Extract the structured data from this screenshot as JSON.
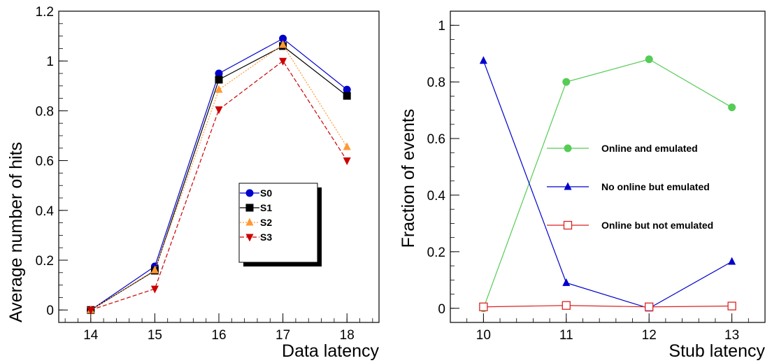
{
  "chart_data": [
    {
      "type": "line",
      "title": "",
      "xlabel": "Data latency",
      "ylabel": "Average number of hits",
      "x": [
        14,
        15,
        16,
        17,
        18
      ],
      "xlim": [
        13.5,
        18.5
      ],
      "ylim": [
        -0.05,
        1.2
      ],
      "xticks": [
        "14",
        "15",
        "16",
        "17",
        "18"
      ],
      "yticks": [
        "0",
        "0.2",
        "0.4",
        "0.6",
        "0.8",
        "1",
        "1.2"
      ],
      "grid": false,
      "legend_position": "bottom-right",
      "series": [
        {
          "name": "S0",
          "color": "#0000cc",
          "marker": "circle",
          "line": "solid",
          "values": [
            0.0,
            0.175,
            0.95,
            1.09,
            0.885
          ]
        },
        {
          "name": "S1",
          "color": "#000000",
          "marker": "square",
          "line": "solid",
          "values": [
            0.0,
            0.158,
            0.925,
            1.06,
            0.86
          ]
        },
        {
          "name": "S2",
          "color": "#ff9933",
          "marker": "triangle-up",
          "line": "dotted",
          "values": [
            0.0,
            0.16,
            0.885,
            1.065,
            0.655
          ]
        },
        {
          "name": "S3",
          "color": "#cc0000",
          "marker": "triangle-down",
          "line": "dashed",
          "values": [
            0.0,
            0.085,
            0.805,
            1.0,
            0.6
          ]
        }
      ]
    },
    {
      "type": "line",
      "title": "",
      "xlabel": "Stub latency",
      "ylabel": "Fraction of events",
      "x": [
        10,
        11,
        12,
        13
      ],
      "xlim": [
        9.6,
        13.4
      ],
      "ylim": [
        -0.05,
        1.05
      ],
      "xticks": [
        "10",
        "11",
        "12",
        "13"
      ],
      "yticks": [
        "0",
        "0.2",
        "0.4",
        "0.6",
        "0.8",
        "1"
      ],
      "grid": false,
      "legend_position": "center-right",
      "series": [
        {
          "name": "Online and emulated",
          "color": "#55cc55",
          "marker": "circle",
          "line": "solid",
          "values": [
            0.0,
            0.8,
            0.88,
            0.71
          ]
        },
        {
          "name": "No online but emulated",
          "color": "#0000cc",
          "marker": "triangle-up",
          "line": "solid",
          "values": [
            0.875,
            0.09,
            0.0,
            0.165
          ]
        },
        {
          "name": "Online but not emulated",
          "color": "#dd2222",
          "marker": "open-square",
          "line": "solid",
          "values": [
            0.005,
            0.01,
            0.005,
            0.008
          ]
        }
      ]
    }
  ]
}
